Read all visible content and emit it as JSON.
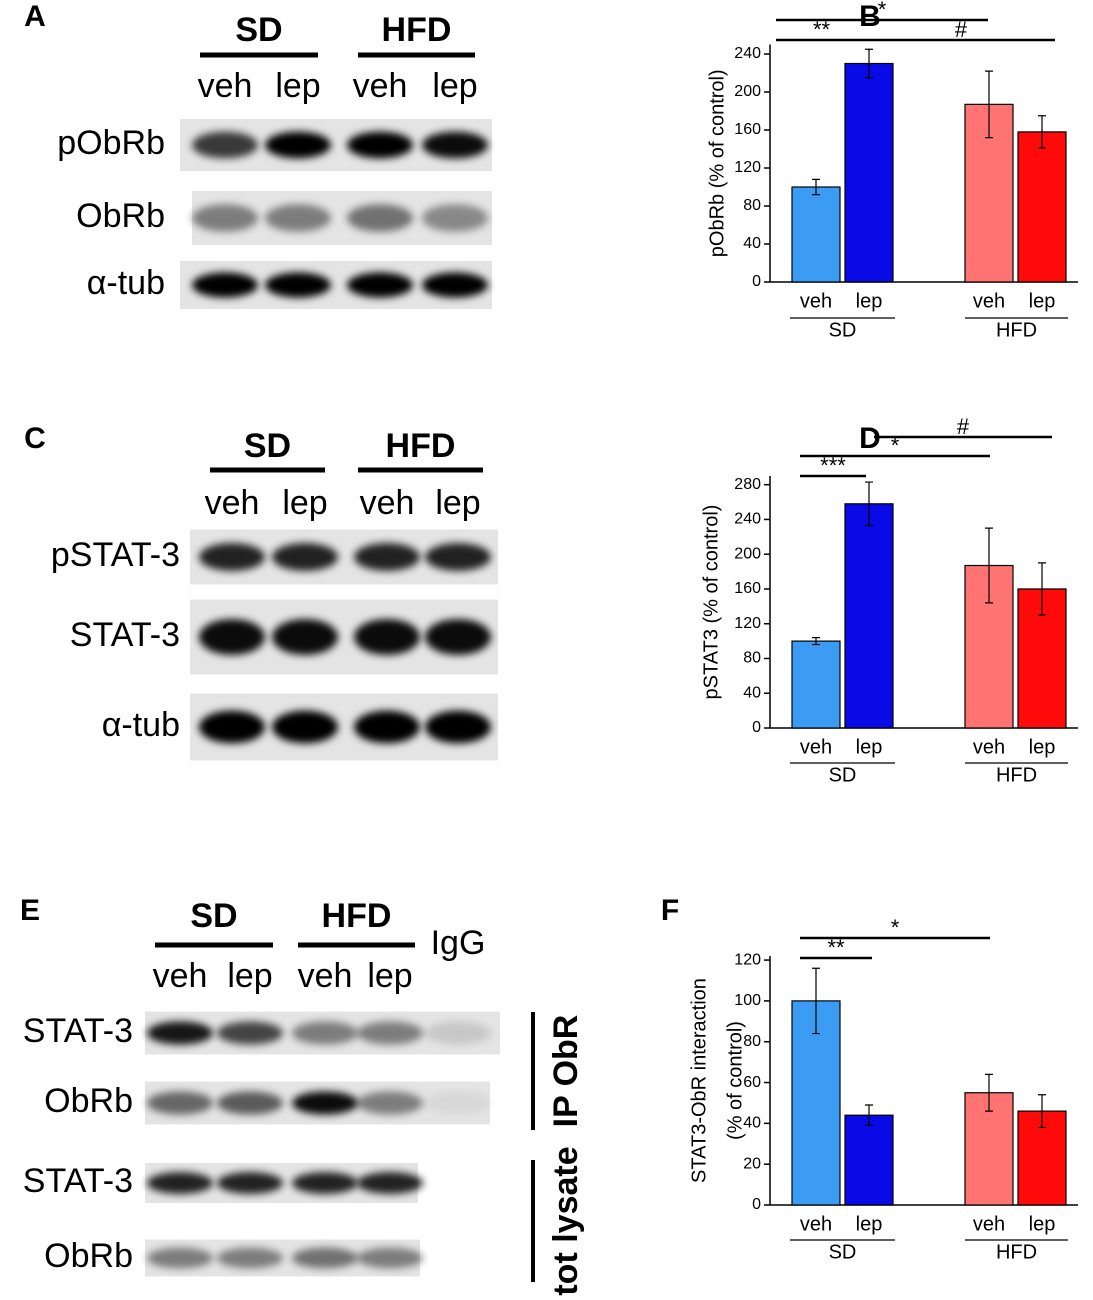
{
  "panels": [
    {
      "label": "A",
      "groups": [
        "SD",
        "HFD"
      ],
      "lanes": [
        "veh",
        "lep",
        "veh",
        "lep"
      ],
      "rows": [
        "pObRb",
        "ObRb",
        "α-tub"
      ]
    },
    {
      "label": "C",
      "groups": [
        "SD",
        "HFD"
      ],
      "lanes": [
        "veh",
        "lep",
        "veh",
        "lep"
      ],
      "rows": [
        "pSTAT-3",
        "STAT-3",
        "α-tub"
      ]
    },
    {
      "label": "E",
      "groups": [
        "SD",
        "HFD"
      ],
      "control": "IgG",
      "lanes": [
        "veh",
        "lep",
        "veh",
        "lep"
      ],
      "rows": [
        "STAT-3",
        "ObRb",
        "STAT-3",
        "ObRb"
      ],
      "side_labels": [
        "IP ObR",
        "tot lysate"
      ]
    }
  ],
  "chart_data": [
    {
      "type": "bar",
      "panel_label": "B",
      "y_label": [
        "pObRb (% of control)"
      ],
      "categories": [
        "veh",
        "lep",
        "veh",
        "lep"
      ],
      "groups": [
        "SD",
        "HFD"
      ],
      "values": [
        100,
        230,
        187,
        158
      ],
      "errors": [
        8,
        15,
        35,
        17
      ],
      "colors": [
        "#3c9cf4",
        "#0a0ae6",
        "#ff7373",
        "#ff0a0a"
      ],
      "ylim": [
        0,
        250
      ],
      "yticks": [
        0,
        40,
        80,
        120,
        160,
        200,
        240
      ],
      "annotations": [
        "*",
        "**",
        "#"
      ]
    },
    {
      "type": "bar",
      "panel_label": "D",
      "y_label": [
        "pSTAT3 (% of control)"
      ],
      "categories": [
        "veh",
        "lep",
        "veh",
        "lep"
      ],
      "groups": [
        "SD",
        "HFD"
      ],
      "values": [
        100,
        258,
        187,
        160
      ],
      "errors": [
        4,
        25,
        43,
        30
      ],
      "colors": [
        "#3c9cf4",
        "#0a0ae6",
        "#ff7373",
        "#ff0a0a"
      ],
      "ylim": [
        0,
        290
      ],
      "yticks": [
        0,
        40,
        80,
        120,
        160,
        200,
        240,
        280
      ],
      "annotations": [
        "#",
        "*",
        "***"
      ]
    },
    {
      "type": "bar",
      "panel_label": "F",
      "y_label": [
        "STAT3-ObR interaction",
        "(% of control)"
      ],
      "categories": [
        "veh",
        "lep",
        "veh",
        "lep"
      ],
      "groups": [
        "SD",
        "HFD"
      ],
      "values": [
        100,
        44,
        55,
        46
      ],
      "errors": [
        16,
        5,
        9,
        8
      ],
      "colors": [
        "#3c9cf4",
        "#0a0ae6",
        "#ff7373",
        "#ff0a0a"
      ],
      "ylim": [
        0,
        122
      ],
      "yticks": [
        0,
        20,
        40,
        60,
        80,
        100,
        120
      ],
      "annotations": [
        "*",
        "**"
      ]
    }
  ]
}
